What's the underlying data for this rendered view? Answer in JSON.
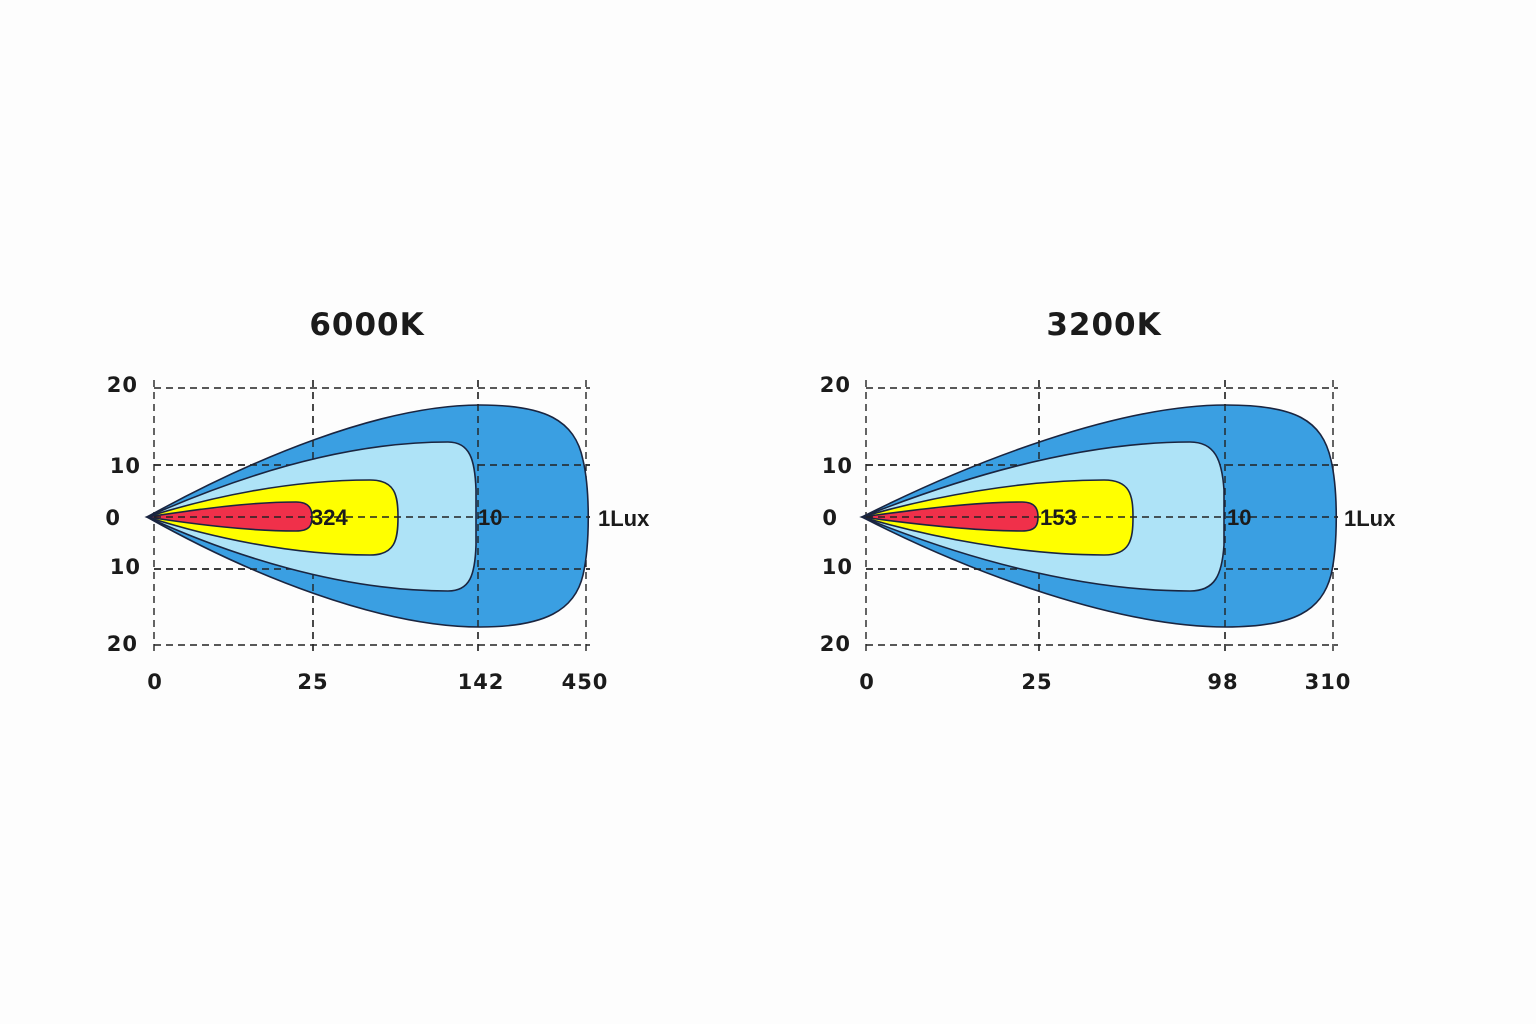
{
  "colors": {
    "zone_1lux": "#3a9fe2",
    "zone_10lux": "#aee3f7",
    "zone_mid": "#ffff00",
    "zone_peak": "#f0304a"
  },
  "chart_data": [
    {
      "type": "area",
      "title": "6000K",
      "x_ticks": [
        "0",
        "25",
        "142",
        "450"
      ],
      "y_ticks": [
        "20",
        "10",
        "0",
        "10",
        "20"
      ],
      "ylim": [
        -20,
        20
      ],
      "grid": true,
      "zones": [
        {
          "label": "1Lux",
          "reach": 450,
          "half_width": 17
        },
        {
          "label": "10",
          "reach": 142,
          "half_width": 12.5
        },
        {
          "label": "324",
          "reach": 25,
          "half_width": 5
        },
        {
          "label": "",
          "reach": 25,
          "half_width": 2
        }
      ]
    },
    {
      "type": "area",
      "title": "3200K",
      "x_ticks": [
        "0",
        "25",
        "98",
        "310"
      ],
      "y_ticks": [
        "20",
        "10",
        "0",
        "10",
        "20"
      ],
      "ylim": [
        -20,
        20
      ],
      "grid": true,
      "zones": [
        {
          "label": "1Lux",
          "reach": 310,
          "half_width": 17
        },
        {
          "label": "10",
          "reach": 98,
          "half_width": 12.5
        },
        {
          "label": "153",
          "reach": 25,
          "half_width": 5
        },
        {
          "label": "",
          "reach": 25,
          "half_width": 2
        }
      ]
    }
  ]
}
